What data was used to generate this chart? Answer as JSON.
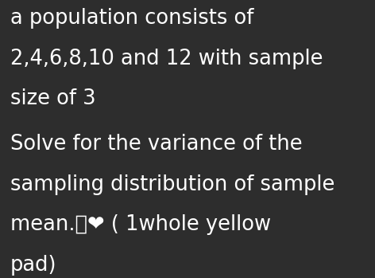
{
  "background_color": "#2d2d2d",
  "text_color": "#ffffff",
  "line1": "a population consists of",
  "line2": "2,4,6,8,10 and 12 with sample",
  "line3": "size of 3",
  "line5": "Solve for the variance of the",
  "line6": "sampling distribution of sample",
  "line7": "mean.🤌❤️ ( 1whole yellow",
  "line8": "pad)",
  "font_size": 18.5,
  "figsize": [
    4.72,
    3.49
  ],
  "dpi": 100
}
